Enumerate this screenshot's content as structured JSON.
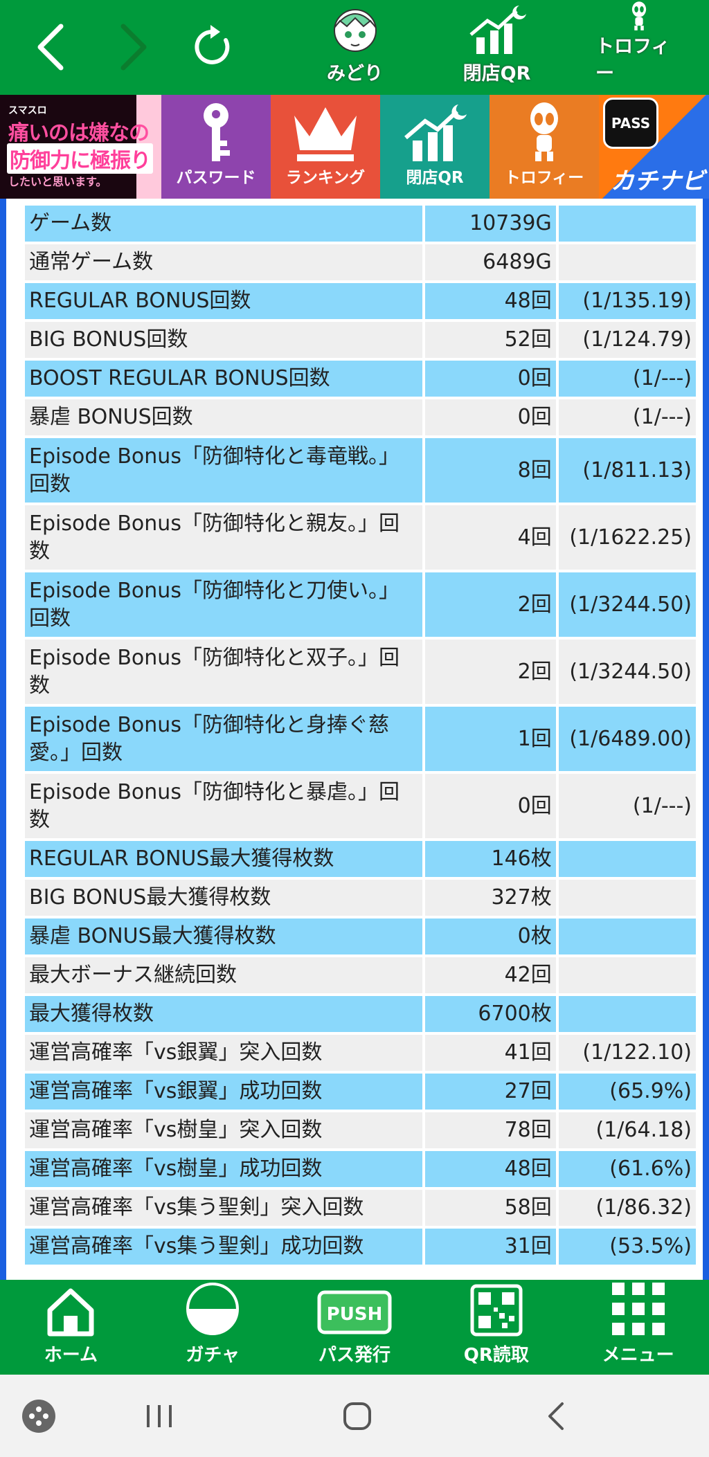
{
  "topbar": {
    "midori_label": "みどり",
    "qr_label": "閉店QR",
    "trophy_label": "トロフィー"
  },
  "banner": {
    "logo_line1": "スマスロ",
    "logo_line2": "痛いのは嫌なので",
    "logo_line3": "防御力に極振り",
    "logo_line4": "したいと思います。",
    "password_label": "パスワード",
    "ranking_label": "ランキング",
    "qr_label": "閉店QR",
    "trophy_label": "トロフィー",
    "pass_badge": "PASS",
    "kachi_label": "カチナビ"
  },
  "stats": [
    {
      "name": "ゲーム数",
      "value": "10739G",
      "rate": ""
    },
    {
      "name": "通常ゲーム数",
      "value": "6489G",
      "rate": ""
    },
    {
      "name": "REGULAR BONUS回数",
      "value": "48回",
      "rate": "(1/135.19)"
    },
    {
      "name": "BIG BONUS回数",
      "value": "52回",
      "rate": "(1/124.79)"
    },
    {
      "name": "BOOST REGULAR BONUS回数",
      "value": "0回",
      "rate": "(1/---)"
    },
    {
      "name": "暴虐 BONUS回数",
      "value": "0回",
      "rate": "(1/---)"
    },
    {
      "name": "Episode Bonus「防御特化と毒竜戦。」回数",
      "value": "8回",
      "rate": "(1/811.13)"
    },
    {
      "name": "Episode Bonus「防御特化と親友。」回数",
      "value": "4回",
      "rate": "(1/1622.25)"
    },
    {
      "name": "Episode Bonus「防御特化と刀使い。」回数",
      "value": "2回",
      "rate": "(1/3244.50)"
    },
    {
      "name": "Episode Bonus「防御特化と双子。」回数",
      "value": "2回",
      "rate": "(1/3244.50)"
    },
    {
      "name": "Episode Bonus「防御特化と身捧ぐ慈愛。」回数",
      "value": "1回",
      "rate": "(1/6489.00)"
    },
    {
      "name": "Episode Bonus「防御特化と暴虐。」回数",
      "value": "0回",
      "rate": "(1/---)"
    },
    {
      "name": "REGULAR BONUS最大獲得枚数",
      "value": "146枚",
      "rate": ""
    },
    {
      "name": "BIG BONUS最大獲得枚数",
      "value": "327枚",
      "rate": ""
    },
    {
      "name": "暴虐 BONUS最大獲得枚数",
      "value": "0枚",
      "rate": ""
    },
    {
      "name": "最大ボーナス継続回数",
      "value": "42回",
      "rate": ""
    },
    {
      "name": "最大獲得枚数",
      "value": "6700枚",
      "rate": ""
    },
    {
      "name": "運営高確率「vs銀翼」突入回数",
      "value": "41回",
      "rate": "(1/122.10)"
    },
    {
      "name": "運営高確率「vs銀翼」成功回数",
      "value": "27回",
      "rate": "(65.9%)"
    },
    {
      "name": "運営高確率「vs樹皇」突入回数",
      "value": "78回",
      "rate": "(1/64.18)"
    },
    {
      "name": "運営高確率「vs樹皇」成功回数",
      "value": "48回",
      "rate": "(61.6%)"
    },
    {
      "name": "運営高確率「vs集う聖剣」突入回数",
      "value": "58回",
      "rate": "(1/86.32)"
    },
    {
      "name": "運営高確率「vs集う聖剣」成功回数",
      "value": "31回",
      "rate": "(53.5%)"
    }
  ],
  "bottomnav": {
    "home_label": "ホーム",
    "gacha_label": "ガチャ",
    "pass_label": "パス発行",
    "push_text": "PUSH",
    "qr_label": "QR読取",
    "menu_label": "メニュー"
  },
  "colors": {
    "green_bar": "#009a3c",
    "row_blue": "#8ad8fb",
    "row_gray": "#efefef",
    "frame_blue": "#1a5fe0"
  }
}
